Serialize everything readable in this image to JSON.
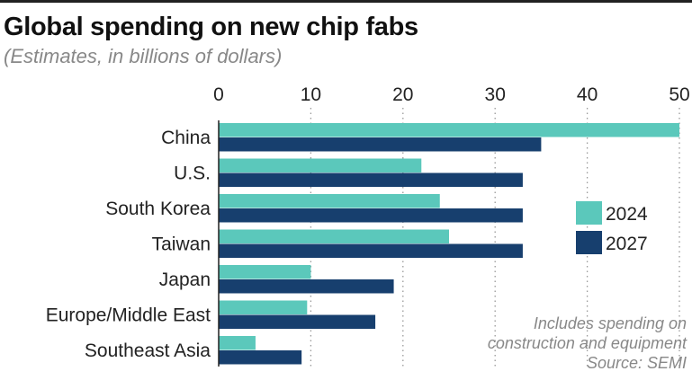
{
  "chart_data": {
    "type": "bar",
    "orientation": "horizontal",
    "title": "Global spending on new chip fabs",
    "subtitle": "(Estimates, in billions of dollars)",
    "categories": [
      "China",
      "U.S.",
      "South Korea",
      "Taiwan",
      "Japan",
      "Europe/Middle East",
      "Southeast Asia"
    ],
    "series": [
      {
        "name": "2024",
        "color": "#5bc8bb",
        "values": [
          50,
          22,
          24,
          25,
          10,
          9.6,
          4
        ]
      },
      {
        "name": "2027",
        "color": "#173f6e",
        "values": [
          35,
          33,
          33,
          33,
          19,
          17,
          9
        ]
      }
    ],
    "xlim": [
      0,
      50
    ],
    "xticks": [
      0,
      10,
      20,
      30,
      40,
      50
    ],
    "grid": "vertical dotted",
    "legend_position": "right",
    "notes": [
      "Includes spending on",
      "construction and equipment",
      "Source: SEMI"
    ]
  }
}
